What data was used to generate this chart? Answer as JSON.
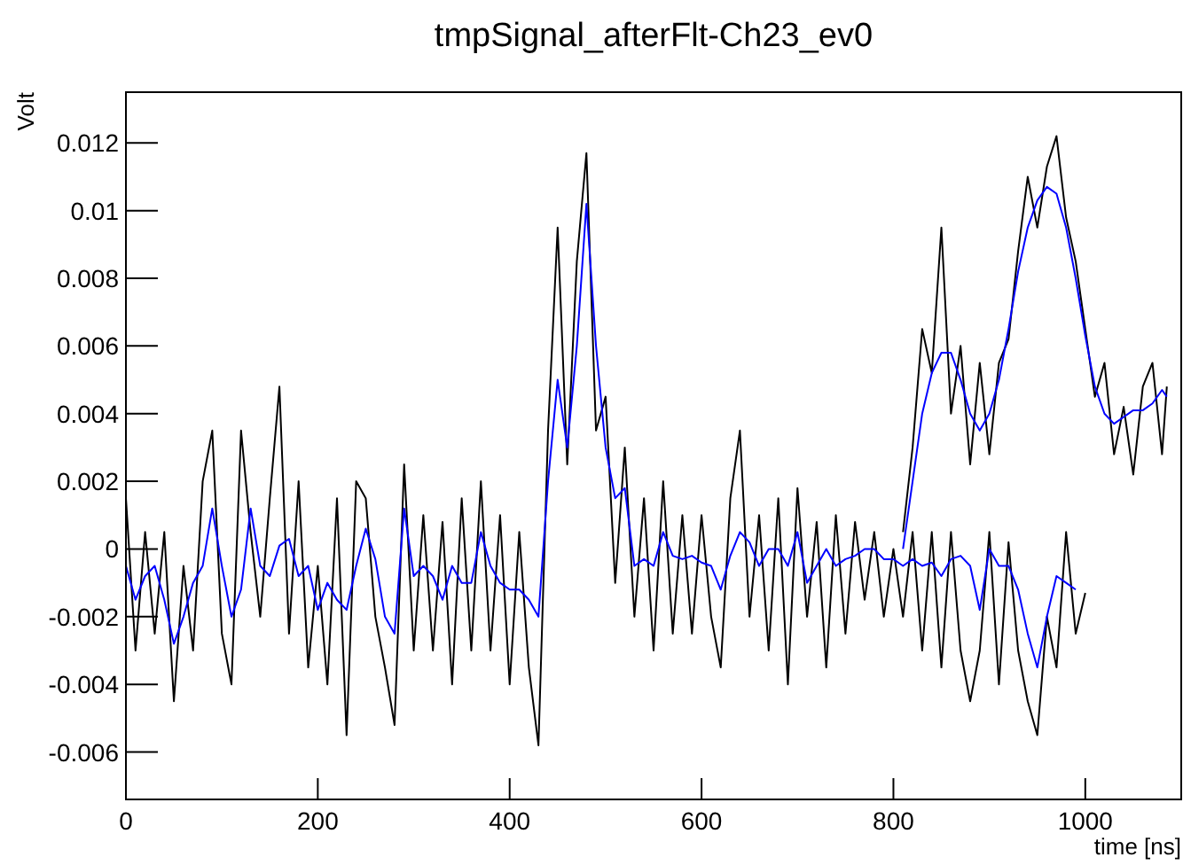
{
  "chart_data": {
    "type": "line",
    "title": "tmpSignal_afterFlt-Ch23_ev0",
    "xlabel": "time [ns]",
    "ylabel": "Volt",
    "xlim": [
      0,
      1100
    ],
    "ylim": [
      -0.0074,
      0.0135
    ],
    "xticks": [
      0,
      200,
      400,
      600,
      800,
      1000
    ],
    "yticks": [
      -0.006,
      -0.004,
      -0.002,
      0,
      0.002,
      0.004,
      0.006,
      0.008,
      0.01,
      0.012
    ],
    "grid": false,
    "marker": "none",
    "line_style": "solid",
    "series": [
      {
        "color": "#000000",
        "x": [
          0,
          10,
          20,
          30,
          40,
          50,
          60,
          70,
          80,
          90,
          100,
          110,
          120,
          130,
          140,
          150,
          160,
          170,
          180,
          190,
          200,
          210,
          220,
          230,
          240,
          250,
          260,
          270,
          280,
          290,
          300,
          310,
          320,
          330,
          340,
          350,
          360,
          370,
          380,
          390,
          400,
          410,
          420,
          430,
          440,
          450,
          460,
          470,
          480,
          490,
          500,
          510,
          520,
          530,
          540,
          550,
          560,
          570,
          580,
          590,
          600,
          610,
          620,
          630,
          640,
          650,
          660,
          670,
          680,
          690,
          700,
          710,
          720,
          730,
          740,
          750,
          760,
          770,
          780,
          790,
          800,
          810,
          820,
          830,
          840,
          850,
          860,
          870,
          880,
          890,
          900,
          910,
          920,
          930,
          940,
          950,
          960,
          970,
          980,
          990,
          1000
        ],
        "values": [
          0.0015,
          -0.003,
          0.0005,
          -0.0025,
          0.0005,
          -0.0045,
          -0.0005,
          -0.003,
          0.002,
          0.0035,
          -0.0025,
          -0.004,
          0.0035,
          0.0005,
          -0.002,
          0.0015,
          0.0048,
          -0.0025,
          0.002,
          -0.0035,
          -0.0005,
          -0.004,
          0.0015,
          -0.0055,
          0.002,
          0.0015,
          -0.002,
          -0.0035,
          -0.0052,
          0.0025,
          -0.003,
          0.001,
          -0.003,
          0.0008,
          -0.004,
          0.0015,
          -0.003,
          0.002,
          -0.003,
          0.001,
          -0.004,
          0.0005,
          -0.0035,
          -0.0058,
          0.0035,
          0.0095,
          0.0025,
          0.0085,
          0.0117,
          0.0035,
          0.0045,
          -0.001,
          0.003,
          -0.002,
          0.0015,
          -0.003,
          0.002,
          -0.0025,
          0.001,
          -0.0025,
          0.001,
          -0.002,
          -0.0035,
          0.0015,
          0.0035,
          -0.002,
          0.001,
          -0.003,
          0.0015,
          -0.004,
          0.0018,
          -0.002,
          0.0008,
          -0.0035,
          0.001,
          -0.0025,
          0.0008,
          -0.0015,
          0.0005,
          -0.002,
          0,
          -0.002,
          0.0005,
          -0.003,
          0.0005,
          -0.0035,
          0.0005,
          -0.003,
          -0.0045,
          -0.003,
          0.0005,
          -0.004,
          0.0002,
          -0.003,
          -0.0045,
          -0.0055,
          -0.002,
          -0.0035,
          0.0005,
          -0.0025,
          -0.0013
        ]
      },
      {
        "color": "#0000ff",
        "x": [
          0,
          10,
          20,
          30,
          40,
          50,
          60,
          70,
          80,
          90,
          100,
          110,
          120,
          130,
          140,
          150,
          160,
          170,
          180,
          190,
          200,
          210,
          220,
          230,
          240,
          250,
          260,
          270,
          280,
          290,
          300,
          310,
          320,
          330,
          340,
          350,
          360,
          370,
          380,
          390,
          400,
          410,
          420,
          430,
          440,
          450,
          460,
          470,
          480,
          490,
          500,
          510,
          520,
          530,
          540,
          550,
          560,
          570,
          580,
          590,
          600,
          610,
          620,
          630,
          640,
          650,
          660,
          670,
          680,
          690,
          700,
          710,
          720,
          730,
          740,
          750,
          760,
          770,
          780,
          790,
          800,
          810,
          820,
          830,
          840,
          850,
          860,
          870,
          880,
          890,
          900,
          910,
          920,
          930,
          940,
          950,
          960,
          970,
          980,
          990
        ],
        "values": [
          -0.0005,
          -0.0015,
          -0.0008,
          -0.0005,
          -0.0015,
          -0.0028,
          -0.002,
          -0.001,
          -0.0005,
          0.0012,
          -0.0005,
          -0.002,
          -0.0012,
          0.0012,
          -0.0005,
          -0.0008,
          0.0001,
          0.0003,
          -0.0008,
          -0.0005,
          -0.0018,
          -0.001,
          -0.0015,
          -0.0018,
          -0.0005,
          0.0006,
          -0.0003,
          -0.002,
          -0.0025,
          0.0012,
          -0.0008,
          -0.0005,
          -0.0008,
          -0.0015,
          -0.0005,
          -0.001,
          -0.001,
          0.0005,
          -0.0005,
          -0.001,
          -0.0012,
          -0.0012,
          -0.0015,
          -0.002,
          0.002,
          0.005,
          0.003,
          0.006,
          0.0102,
          0.006,
          0.003,
          0.0015,
          0.0018,
          -0.0005,
          -0.0003,
          -0.0005,
          0.0005,
          -0.0002,
          -0.0003,
          -0.0002,
          -0.0004,
          -0.0005,
          -0.0012,
          -0.0002,
          0.0005,
          0.0002,
          -0.0005,
          0,
          0,
          -0.0005,
          0.0005,
          -0.001,
          -0.0005,
          0,
          -0.0005,
          -0.0003,
          -0.0002,
          0,
          0,
          -0.0003,
          -0.0003,
          -0.0005,
          -0.0003,
          -0.0005,
          -0.0004,
          -0.0008,
          -0.0003,
          -0.0002,
          -0.0005,
          -0.0018,
          0,
          -0.0005,
          -0.0005,
          -0.0012,
          -0.0025,
          -0.0035,
          -0.002,
          -0.0008,
          -0.001,
          -0.0012
        ]
      },
      {
        "color": "#000000",
        "x": [
          810,
          820,
          830,
          840,
          850,
          860,
          870,
          880,
          890,
          900,
          910,
          920,
          930,
          940,
          950,
          960,
          970,
          980,
          990,
          1000,
          1010,
          1020,
          1030,
          1040,
          1050,
          1060,
          1070,
          1080,
          1085
        ],
        "values": [
          0.0005,
          0.003,
          0.0065,
          0.0052,
          0.0095,
          0.004,
          0.006,
          0.0025,
          0.0055,
          0.0028,
          0.0055,
          0.0062,
          0.0088,
          0.011,
          0.0095,
          0.0113,
          0.0122,
          0.0098,
          0.0085,
          0.0065,
          0.0045,
          0.0055,
          0.0028,
          0.0042,
          0.0022,
          0.0048,
          0.0055,
          0.0028,
          0.0048
        ]
      },
      {
        "color": "#0000ff",
        "x": [
          810,
          820,
          830,
          840,
          850,
          860,
          870,
          880,
          890,
          900,
          910,
          920,
          930,
          940,
          950,
          960,
          970,
          980,
          990,
          1000,
          1010,
          1020,
          1030,
          1040,
          1050,
          1060,
          1070,
          1080,
          1085
        ],
        "values": [
          0,
          0.002,
          0.004,
          0.0052,
          0.0058,
          0.0058,
          0.005,
          0.004,
          0.0035,
          0.004,
          0.005,
          0.0065,
          0.0082,
          0.0095,
          0.0103,
          0.0107,
          0.0105,
          0.0095,
          0.008,
          0.0063,
          0.0048,
          0.004,
          0.0037,
          0.0039,
          0.0041,
          0.0041,
          0.0043,
          0.0047,
          0.0045
        ]
      }
    ]
  }
}
